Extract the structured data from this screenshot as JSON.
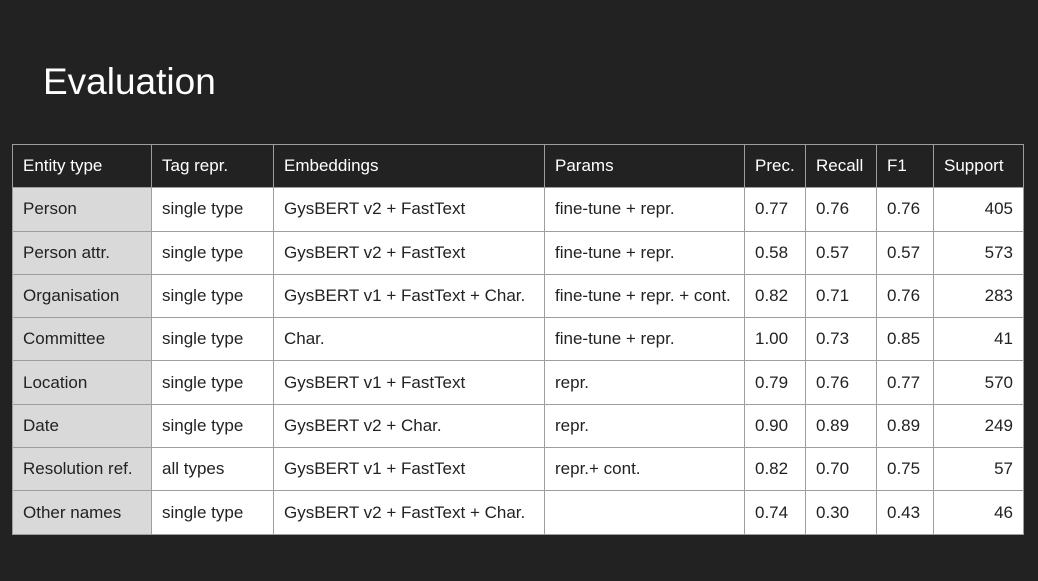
{
  "title": "Evaluation",
  "table": {
    "headers": [
      "Entity type",
      "Tag repr.",
      "Embeddings",
      "Params",
      "Prec.",
      "Recall",
      "F1",
      "Support"
    ],
    "rows": [
      [
        "Person",
        "single type",
        "GysBERT v2 + FastText",
        "fine-tune + repr.",
        "0.77",
        "0.76",
        "0.76",
        "405"
      ],
      [
        "Person attr.",
        "single type",
        "GysBERT v2 + FastText",
        "fine-tune + repr.",
        "0.58",
        "0.57",
        "0.57",
        "573"
      ],
      [
        "Organisation",
        "single type",
        "GysBERT v1 + FastText + Char.",
        "fine-tune + repr. + cont.",
        "0.82",
        "0.71",
        "0.76",
        "283"
      ],
      [
        "Committee",
        "single type",
        "Char.",
        "fine-tune + repr.",
        "1.00",
        "0.73",
        "0.85",
        "41"
      ],
      [
        "Location",
        "single type",
        "GysBERT v1 + FastText",
        "repr.",
        "0.79",
        "0.76",
        "0.77",
        "570"
      ],
      [
        "Date",
        "single type",
        "GysBERT v2 + Char.",
        "repr.",
        "0.90",
        "0.89",
        "0.89",
        "249"
      ],
      [
        "Resolution ref.",
        "all types",
        "GysBERT v1 + FastText",
        "repr.+ cont.",
        "0.82",
        "0.70",
        "0.75",
        "57"
      ],
      [
        "Other names",
        "single type",
        "GysBERT v2 + FastText + Char.",
        "",
        "0.74",
        "0.30",
        "0.43",
        "46"
      ]
    ]
  },
  "colors": {
    "background": "#222222",
    "header_text": "#ffffff",
    "first_column_fill": "#d9d9d9",
    "cell_fill": "#ffffff",
    "border": "#9e9e9e"
  }
}
